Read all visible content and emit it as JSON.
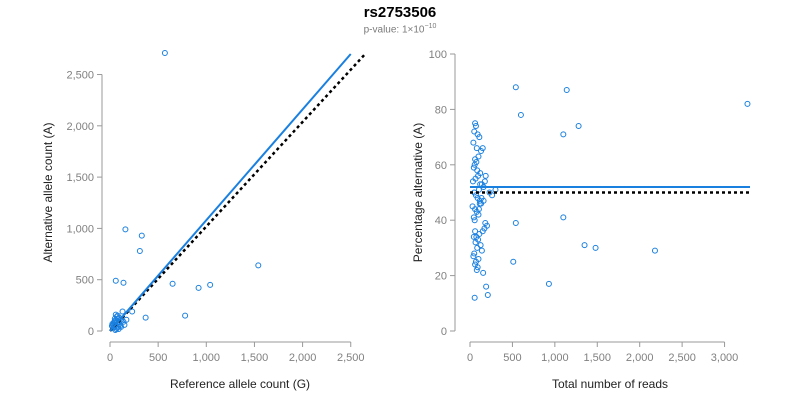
{
  "title": "rs2753506",
  "subtitle": {
    "prefix": "p-value: 1×10",
    "exponent": "−10"
  },
  "colors": {
    "series": "#1a80e0",
    "reference": "#000000",
    "axis": "#999999",
    "tick": "#808080"
  },
  "chart_data": [
    {
      "type": "scatter",
      "xlabel": "Reference allele count (G)",
      "ylabel": "Alternative allele count (A)",
      "xlim": [
        0,
        2700
      ],
      "ylim": [
        0,
        2700
      ],
      "xticks": [
        0,
        500,
        1000,
        1500,
        2000,
        2500
      ],
      "yticks": [
        0,
        500,
        1000,
        1500,
        2000,
        2500
      ],
      "x_tick_labels": [
        "0",
        "500",
        "1,000",
        "1,500",
        "2,000",
        "2,500"
      ],
      "y_tick_labels": [
        "0",
        "500",
        "1,000",
        "1,500",
        "2,000",
        "2,500"
      ],
      "fit_line": {
        "x": [
          0,
          2500
        ],
        "y": [
          0,
          2700
        ]
      },
      "reference_line": {
        "x": [
          0,
          2650
        ],
        "y": [
          0,
          2700
        ]
      },
      "points": {
        "x": [
          570,
          160,
          330,
          310,
          140,
          60,
          650,
          1040,
          920,
          1540,
          780,
          230,
          370,
          130,
          40,
          55,
          70,
          90,
          110,
          30,
          80,
          100,
          150,
          50,
          65,
          120,
          45,
          85,
          95,
          35,
          75,
          105,
          60,
          25,
          140,
          55,
          90,
          170,
          70,
          40,
          115,
          20,
          50,
          80
        ],
        "y": [
          2710,
          990,
          930,
          780,
          470,
          490,
          460,
          450,
          420,
          640,
          150,
          190,
          130,
          190,
          40,
          60,
          80,
          90,
          110,
          30,
          150,
          70,
          60,
          120,
          20,
          100,
          90,
          40,
          130,
          60,
          30,
          50,
          160,
          70,
          90,
          10,
          20,
          110,
          140,
          80,
          40,
          50,
          100,
          120
        ]
      }
    },
    {
      "type": "scatter",
      "xlabel": "Total number of reads",
      "ylabel": "Percentage alternative (A)",
      "xlim": [
        0,
        3300
      ],
      "ylim": [
        0,
        100
      ],
      "xticks": [
        0,
        500,
        1000,
        1500,
        2000,
        2500,
        3000
      ],
      "yticks": [
        0,
        20,
        40,
        60,
        80,
        100
      ],
      "x_tick_labels": [
        "0",
        "500",
        "1,000",
        "1,500",
        "2,000",
        "2,500",
        "3,000"
      ],
      "y_tick_labels": [
        "0",
        "20",
        "40",
        "60",
        "80",
        "100"
      ],
      "fit_line": {
        "x": [
          0,
          3300
        ],
        "y": [
          52,
          52
        ]
      },
      "reference_line": {
        "x": [
          0,
          3300
        ],
        "y": [
          50,
          50
        ]
      },
      "points": {
        "x": [
          3270,
          540,
          1140,
          600,
          1280,
          1100,
          2180,
          1480,
          1350,
          1100,
          540,
          510,
          930,
          60,
          70,
          50,
          90,
          110,
          40,
          80,
          150,
          130,
          100,
          60,
          75,
          55,
          45,
          85,
          120,
          95,
          65,
          35,
          140,
          160,
          105,
          50,
          70,
          90,
          115,
          130,
          30,
          60,
          80,
          100,
          45,
          55,
          180,
          200,
          170,
          150,
          110,
          75,
          95,
          65,
          125,
          85,
          140,
          50,
          40,
          100,
          70,
          60,
          90,
          80,
          155,
          190,
          210,
          230,
          260,
          300,
          120,
          135,
          160,
          175,
          185,
          105,
          115,
          60,
          45,
          55
        ],
        "y": [
          82,
          88,
          87,
          78,
          74,
          71,
          29,
          30,
          31,
          41,
          39,
          25,
          17,
          75,
          74,
          72,
          71,
          70,
          68,
          66,
          66,
          65,
          63,
          62,
          61,
          60,
          59,
          58,
          57,
          56,
          55,
          54,
          53,
          52,
          51,
          50,
          49,
          48,
          47,
          46,
          45,
          44,
          43,
          42,
          41,
          40,
          39,
          38,
          37,
          36,
          35,
          34,
          33,
          32,
          31,
          30,
          29,
          28,
          27,
          26,
          25,
          24,
          23,
          22,
          21,
          16,
          13,
          50,
          49,
          51,
          53,
          48,
          47,
          54,
          56,
          44,
          46,
          36,
          34,
          12
        ]
      }
    }
  ]
}
